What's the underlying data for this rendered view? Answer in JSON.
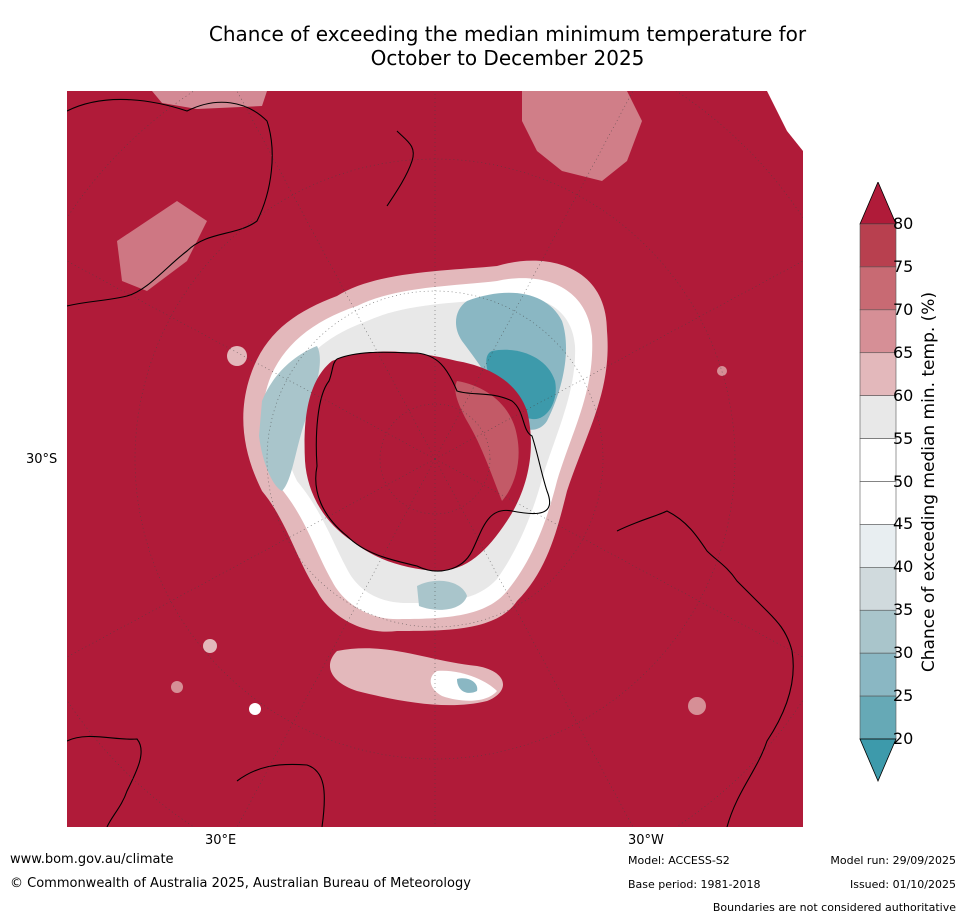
{
  "title": {
    "line1": "Chance of exceeding the median minimum temperature for",
    "line2": "October to December 2025"
  },
  "map": {
    "projection": "south-polar stereographic",
    "lat_label": "30°S",
    "lon_labels": [
      "30°E",
      "30°W"
    ]
  },
  "colorbar": {
    "title": "Chance of exceeding median min. temp. (%)",
    "ticks": [
      "80",
      "75",
      "70",
      "65",
      "60",
      "55",
      "50",
      "45",
      "40",
      "35",
      "30",
      "25",
      "20"
    ],
    "colors": {
      "over": "#b01b39",
      "c75_80": "#b8404f",
      "c70_75": "#c86a73",
      "c65_70": "#d68f96",
      "c60_65": "#e3b8bb",
      "c55_60": "#e8e8e8",
      "c50_55": "#ffffff",
      "c45_50": "#ffffff",
      "c40_45": "#e8eef1",
      "c35_40": "#d0dadd",
      "c30_35": "#a9c5cb",
      "c25_30": "#8ab7c3",
      "c20_25": "#66a9b6",
      "under": "#3d9aab"
    }
  },
  "footer": {
    "website": "www.bom.gov.au/climate",
    "copyright": "© Commonwealth of Australia 2025, Australian Bureau of Meteorology",
    "model": "Model: ACCESS-S2",
    "base_period": "Base period: 1981-2018",
    "model_run": "Model run: 29/09/2025",
    "issued": "Issued: 01/10/2025",
    "disclaimer": "Boundaries are not considered authoritative"
  }
}
